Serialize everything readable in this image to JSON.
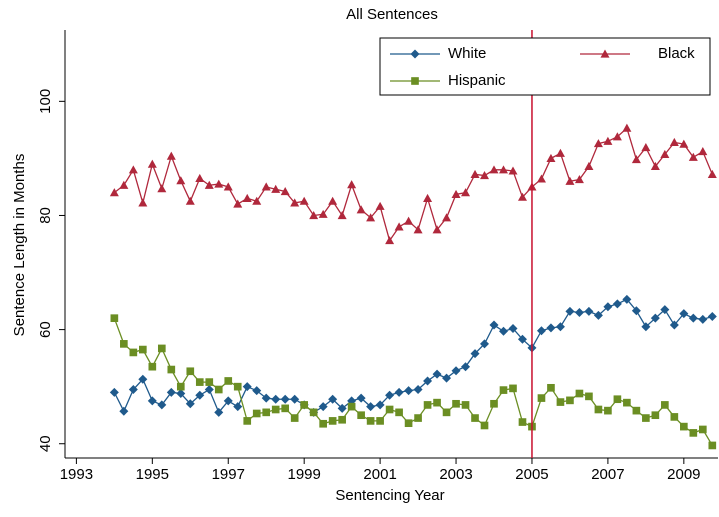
{
  "chart_data": {
    "type": "line",
    "title": "All Sentences",
    "xlabel": "Sentencing Year",
    "ylabel": "Sentence Length in Months",
    "x": [
      1994,
      1994.25,
      1994.5,
      1994.75,
      1995,
      1995.25,
      1995.5,
      1995.75,
      1996,
      1996.25,
      1996.5,
      1996.75,
      1997,
      1997.25,
      1997.5,
      1997.75,
      1998,
      1998.25,
      1998.5,
      1998.75,
      1999,
      1999.25,
      1999.5,
      1999.75,
      2000,
      2000.25,
      2000.5,
      2000.75,
      2001,
      2001.25,
      2001.5,
      2001.75,
      2002,
      2002.25,
      2002.5,
      2002.75,
      2003,
      2003.25,
      2003.5,
      2003.75,
      2004,
      2004.25,
      2004.5,
      2004.75,
      2005,
      2005.25,
      2005.5,
      2005.75,
      2006,
      2006.25,
      2006.5,
      2006.75,
      2007,
      2007.25,
      2007.5,
      2007.75,
      2008,
      2008.25,
      2008.5,
      2008.75,
      2009,
      2009.25,
      2009.5,
      2009.75
    ],
    "series": [
      {
        "name": "White",
        "color": "#1f5a8c",
        "marker": "diamond",
        "values": [
          49,
          45.7,
          49.5,
          51.3,
          47.5,
          46.8,
          49,
          48.8,
          47,
          48.5,
          49.5,
          45.5,
          47.5,
          46.5,
          50,
          49.3,
          48,
          47.8,
          47.8,
          47.8,
          46.8,
          45.5,
          46.5,
          47.8,
          46.2,
          47.5,
          48,
          46.5,
          46.8,
          48.5,
          49,
          49.3,
          49.5,
          51,
          52.2,
          51.5,
          52.8,
          53.5,
          55.8,
          57.5,
          60.8,
          59.7,
          60.2,
          58.3,
          56.8,
          59.8,
          60.3,
          60.5,
          63.2,
          63,
          63.2,
          62.5,
          64,
          64.5,
          65.3,
          63.3,
          60.5,
          62,
          63.5,
          60.8,
          62.8,
          62,
          61.8,
          62.3
        ]
      },
      {
        "name": "Black",
        "color": "#b0283c",
        "marker": "triangle",
        "values": [
          84,
          85.3,
          88,
          82.2,
          89,
          84.7,
          90.4,
          86.1,
          82.5,
          86.5,
          85.3,
          85.5,
          85,
          82,
          83,
          82.5,
          85,
          84.6,
          84.2,
          82.2,
          82.5,
          80,
          80.2,
          82.5,
          80,
          85.4,
          81,
          79.6,
          81.6,
          75.6,
          78,
          79,
          77.5,
          83,
          77.5,
          79.6,
          83.7,
          84,
          87.2,
          87,
          88,
          88,
          87.8,
          83.2,
          85,
          86.4,
          90,
          90.9,
          86,
          86.3,
          88.6,
          92.6,
          93,
          93.8,
          95.3,
          89.8,
          91.9,
          88.6,
          90.7,
          92.8,
          92.5,
          90.2,
          91.2,
          87.2
        ]
      },
      {
        "name": "Hispanic",
        "color": "#6b8e23",
        "marker": "square",
        "values": [
          62,
          57.5,
          56,
          56.5,
          53.5,
          56.7,
          53,
          50,
          52.7,
          50.8,
          50.8,
          49.5,
          51,
          50,
          44,
          45.3,
          45.5,
          46,
          46.2,
          44.5,
          46.8,
          45.5,
          43.5,
          44,
          44.2,
          46.5,
          45,
          44,
          44,
          46,
          45.5,
          43.6,
          44.5,
          46.8,
          47.2,
          45.5,
          47,
          46.8,
          44.5,
          43.2,
          47,
          49.4,
          49.7,
          43.8,
          43,
          48,
          49.8,
          47.3,
          47.6,
          48.8,
          48.3,
          46,
          45.8,
          47.8,
          47.2,
          45.8,
          44.5,
          45,
          46.8,
          44.7,
          43,
          41.9,
          42.5,
          39.7
        ]
      }
    ],
    "vline": 2005,
    "vline_color": "#c8102e",
    "xlim": [
      1992.7,
      2009.9
    ],
    "xticks": [
      1993,
      1995,
      1997,
      1999,
      2001,
      2003,
      2005,
      2007,
      2009
    ],
    "ylim": [
      37.5,
      112.5
    ],
    "yticks": [
      40,
      60,
      80,
      100
    ],
    "legend": "top-right",
    "grid": false
  }
}
